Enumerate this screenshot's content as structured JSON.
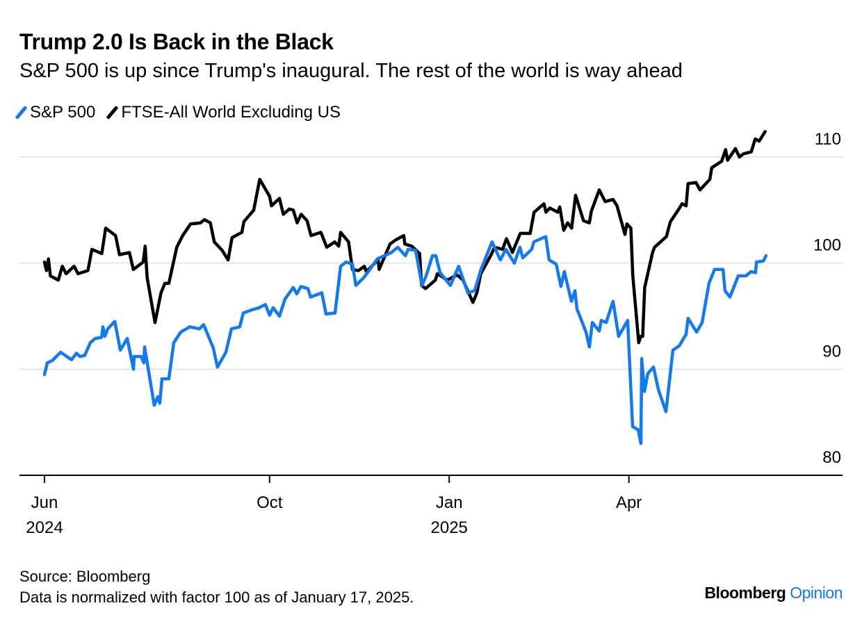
{
  "header": {
    "title": "Trump 2.0 Is Back in the Black",
    "subtitle": "S&P 500 is up since Trump's inaugural. The rest of the world is way ahead"
  },
  "footer": {
    "source": "Source: Bloomberg",
    "note": "Data is normalized with factor 100 as of January 17, 2025.",
    "logo_main": "Bloomberg",
    "logo_accent": "Opinion"
  },
  "colors": {
    "sp500": "#1279f0",
    "ftse": "#000000",
    "grid": "#e6e6e6",
    "logo_accent": "#1279f0"
  },
  "chart_data": {
    "type": "line",
    "title": "Trump 2.0 Is Back in the Black",
    "xlabel": "",
    "ylabel": "",
    "x_unit": "days since start of June 2024 (approx.)",
    "ylim": [
      80,
      113
    ],
    "yticks": [
      80,
      90,
      100,
      110
    ],
    "grid": true,
    "legend": "top-left",
    "xticks": [
      {
        "x": 0,
        "label": "Jun",
        "sublabel": "2024"
      },
      {
        "x": 114,
        "label": "Oct",
        "sublabel": ""
      },
      {
        "x": 205,
        "label": "Jan",
        "sublabel": "2025"
      },
      {
        "x": 296,
        "label": "Apr",
        "sublabel": ""
      }
    ],
    "series": [
      {
        "name": "S&P 500",
        "color": "#1279f0",
        "points": [
          [
            0,
            89.5
          ],
          [
            1.4,
            90.6
          ],
          [
            3.9,
            90.8
          ],
          [
            8.1,
            91.6
          ],
          [
            13.7,
            90.9
          ],
          [
            16.2,
            91.5
          ],
          [
            18,
            91.2
          ],
          [
            20.4,
            91.3
          ],
          [
            23.2,
            92.5
          ],
          [
            25.7,
            92.9
          ],
          [
            28.9,
            93
          ],
          [
            29.6,
            94
          ],
          [
            30.6,
            93.1
          ],
          [
            32,
            93.8
          ],
          [
            35.6,
            94.5
          ],
          [
            38.4,
            91.8
          ],
          [
            41.9,
            92.9
          ],
          [
            45.1,
            90
          ],
          [
            45.4,
            91.2
          ],
          [
            48.9,
            91.2
          ],
          [
            50.3,
            90.6
          ],
          [
            50.7,
            92.1
          ],
          [
            55.6,
            86.6
          ],
          [
            57.4,
            87.4
          ],
          [
            58.4,
            86.8
          ],
          [
            59.5,
            89.1
          ],
          [
            63,
            89.1
          ],
          [
            65.5,
            92.5
          ],
          [
            69,
            93.5
          ],
          [
            71.8,
            93.8
          ],
          [
            73.6,
            94
          ],
          [
            78.5,
            93.8
          ],
          [
            80.6,
            94.2
          ],
          [
            85.5,
            92
          ],
          [
            87.6,
            90.2
          ],
          [
            91.9,
            91.6
          ],
          [
            94.7,
            93.8
          ],
          [
            98.9,
            94
          ],
          [
            100.7,
            95.3
          ],
          [
            105.2,
            95.6
          ],
          [
            108.8,
            95.8
          ],
          [
            111.9,
            96.1
          ],
          [
            114,
            95.1
          ],
          [
            115.8,
            95.8
          ],
          [
            119,
            95
          ],
          [
            121.8,
            96.6
          ],
          [
            126,
            97.7
          ],
          [
            127.8,
            97.1
          ],
          [
            129.9,
            97.8
          ],
          [
            133.4,
            97.6
          ],
          [
            134.8,
            96.8
          ],
          [
            140.5,
            97.2
          ],
          [
            142.6,
            95.2
          ],
          [
            147.2,
            95.3
          ],
          [
            150,
            99.7
          ],
          [
            152.8,
            100.1
          ],
          [
            156,
            99.9
          ],
          [
            157.7,
            97.9
          ],
          [
            161.6,
            98.6
          ],
          [
            164,
            99.2
          ],
          [
            168.6,
            100.4
          ],
          [
            172.2,
            100.7
          ],
          [
            175.7,
            101
          ],
          [
            178.9,
            101.5
          ],
          [
            182.8,
            100.7
          ],
          [
            184.2,
            101.3
          ],
          [
            188,
            101.2
          ],
          [
            191.2,
            97.9
          ],
          [
            193.3,
            98.8
          ],
          [
            196.5,
            100.7
          ],
          [
            198.2,
            100.7
          ],
          [
            200.4,
            99.1
          ],
          [
            205.6,
            97.9
          ],
          [
            209.8,
            99.7
          ],
          [
            214.4,
            97.2
          ],
          [
            217.9,
            97.4
          ],
          [
            221.1,
            99.4
          ],
          [
            226.7,
            102
          ],
          [
            230.9,
            100.3
          ],
          [
            233.7,
            101.3
          ],
          [
            238,
            100
          ],
          [
            240.8,
            101.5
          ],
          [
            242.3,
            100.5
          ],
          [
            246.8,
            101.3
          ],
          [
            247.9,
            102
          ],
          [
            253.9,
            102.5
          ],
          [
            255.6,
            100.3
          ],
          [
            259.2,
            99.9
          ],
          [
            261.6,
            97.8
          ],
          [
            263.3,
            99.2
          ],
          [
            266.9,
            96.4
          ],
          [
            268.7,
            97.4
          ],
          [
            269.7,
            95.7
          ],
          [
            274.3,
            93.5
          ],
          [
            276,
            92.1
          ],
          [
            277.5,
            94.4
          ],
          [
            281,
            93.6
          ],
          [
            282,
            94.6
          ],
          [
            284.5,
            94.4
          ],
          [
            288,
            96.4
          ],
          [
            290.8,
            93.1
          ],
          [
            295.4,
            94.6
          ],
          [
            297.9,
            84.6
          ],
          [
            300.7,
            84.3
          ],
          [
            302.1,
            83
          ],
          [
            302.5,
            91
          ],
          [
            303.9,
            87.9
          ],
          [
            305.6,
            89.6
          ],
          [
            308.5,
            90.2
          ],
          [
            310.9,
            88.1
          ],
          [
            314.8,
            86
          ],
          [
            318.3,
            91.8
          ],
          [
            321.5,
            92.2
          ],
          [
            325,
            93.3
          ],
          [
            326,
            94.8
          ],
          [
            330.3,
            93.5
          ],
          [
            333.1,
            94.4
          ],
          [
            336.6,
            98.1
          ],
          [
            339.4,
            99.4
          ],
          [
            343.7,
            99.4
          ],
          [
            344.7,
            97.4
          ],
          [
            347.2,
            96.8
          ],
          [
            351.4,
            98.8
          ],
          [
            355.3,
            98.8
          ],
          [
            357.8,
            99.2
          ],
          [
            360.2,
            99.1
          ],
          [
            360.6,
            100.1
          ],
          [
            364.1,
            100.2
          ],
          [
            365.5,
            100.7
          ]
        ]
      },
      {
        "name": "FTSE-All World Excluding US",
        "color": "#000000",
        "points": [
          [
            0,
            100.1
          ],
          [
            1,
            99.3
          ],
          [
            2,
            100.4
          ],
          [
            3,
            98.8
          ],
          [
            7,
            98.4
          ],
          [
            9,
            99.7
          ],
          [
            11,
            99
          ],
          [
            15,
            99.7
          ],
          [
            17,
            99
          ],
          [
            22,
            99.3
          ],
          [
            24,
            101.3
          ],
          [
            29,
            100.9
          ],
          [
            31,
            103.3
          ],
          [
            36,
            102.6
          ],
          [
            38,
            100.8
          ],
          [
            43,
            101
          ],
          [
            45,
            99.4
          ],
          [
            50,
            100.1
          ],
          [
            51,
            101.6
          ],
          [
            52,
            98.6
          ],
          [
            56,
            94.4
          ],
          [
            59,
            97.2
          ],
          [
            61,
            98.1
          ],
          [
            63,
            98.1
          ],
          [
            67,
            101.5
          ],
          [
            70,
            102.6
          ],
          [
            74,
            103.7
          ],
          [
            79,
            103.8
          ],
          [
            81,
            104.1
          ],
          [
            84,
            103.8
          ],
          [
            86,
            102
          ],
          [
            90,
            101.2
          ],
          [
            93,
            100.3
          ],
          [
            95,
            102.4
          ],
          [
            100,
            102.9
          ],
          [
            101,
            103.9
          ],
          [
            106,
            105
          ],
          [
            109,
            107.9
          ],
          [
            114,
            106.3
          ],
          [
            115,
            105.4
          ],
          [
            119,
            106.1
          ],
          [
            121,
            104.6
          ],
          [
            124,
            105.1
          ],
          [
            126,
            105
          ],
          [
            128,
            103.8
          ],
          [
            130,
            104.6
          ],
          [
            133,
            104
          ],
          [
            135,
            102.6
          ],
          [
            140,
            102.9
          ],
          [
            143,
            101.5
          ],
          [
            147,
            102
          ],
          [
            149,
            101.6
          ],
          [
            150,
            102.9
          ],
          [
            154,
            102
          ],
          [
            156,
            99.4
          ],
          [
            159,
            99.3
          ],
          [
            162,
            99.7
          ],
          [
            163,
            99.2
          ],
          [
            169,
            100.3
          ],
          [
            169.5,
            99.4
          ],
          [
            175,
            101.8
          ],
          [
            178,
            102.2
          ],
          [
            182,
            102.6
          ],
          [
            182.5,
            101.8
          ],
          [
            186,
            101.6
          ],
          [
            190,
            100.9
          ],
          [
            191,
            97.9
          ],
          [
            193,
            97.6
          ],
          [
            198,
            98.4
          ],
          [
            199,
            99
          ],
          [
            204,
            98.4
          ],
          [
            209,
            98.9
          ],
          [
            212,
            98.4
          ],
          [
            217,
            96.3
          ],
          [
            219,
            97.2
          ],
          [
            221,
            99
          ],
          [
            226,
            100.7
          ],
          [
            228,
            101.5
          ],
          [
            232,
            101.3
          ],
          [
            234,
            102.3
          ],
          [
            237,
            101
          ],
          [
            241,
            102.8
          ],
          [
            246,
            102.8
          ],
          [
            248,
            104.8
          ],
          [
            253,
            105.6
          ],
          [
            254,
            104.8
          ],
          [
            256,
            105.2
          ],
          [
            260,
            104.8
          ],
          [
            261,
            105.3
          ],
          [
            263,
            103.1
          ],
          [
            265,
            103.8
          ],
          [
            267,
            103.3
          ],
          [
            269,
            106.4
          ],
          [
            273,
            104
          ],
          [
            276,
            103.8
          ],
          [
            277,
            104.9
          ],
          [
            281,
            106.9
          ],
          [
            284,
            105.8
          ],
          [
            288,
            106
          ],
          [
            290,
            105.4
          ],
          [
            294,
            102.7
          ],
          [
            295,
            103.7
          ],
          [
            297,
            103.3
          ],
          [
            298,
            98.8
          ],
          [
            301,
            92.5
          ],
          [
            302,
            93.1
          ],
          [
            303,
            93.1
          ],
          [
            304,
            97.7
          ],
          [
            308,
            101
          ],
          [
            309,
            101.5
          ],
          [
            315,
            102.5
          ],
          [
            317,
            103.9
          ],
          [
            321,
            105
          ],
          [
            323,
            105.6
          ],
          [
            325,
            105.4
          ],
          [
            326,
            107.5
          ],
          [
            330,
            107.6
          ],
          [
            332,
            106.9
          ],
          [
            337,
            107.9
          ],
          [
            338,
            109
          ],
          [
            343,
            109.6
          ],
          [
            345,
            110.7
          ],
          [
            346,
            109.7
          ],
          [
            350,
            110.8
          ],
          [
            352,
            110
          ],
          [
            354,
            110.3
          ],
          [
            358,
            110.5
          ],
          [
            360,
            111.7
          ],
          [
            362,
            111.5
          ],
          [
            365,
            112.4
          ]
        ]
      }
    ]
  }
}
